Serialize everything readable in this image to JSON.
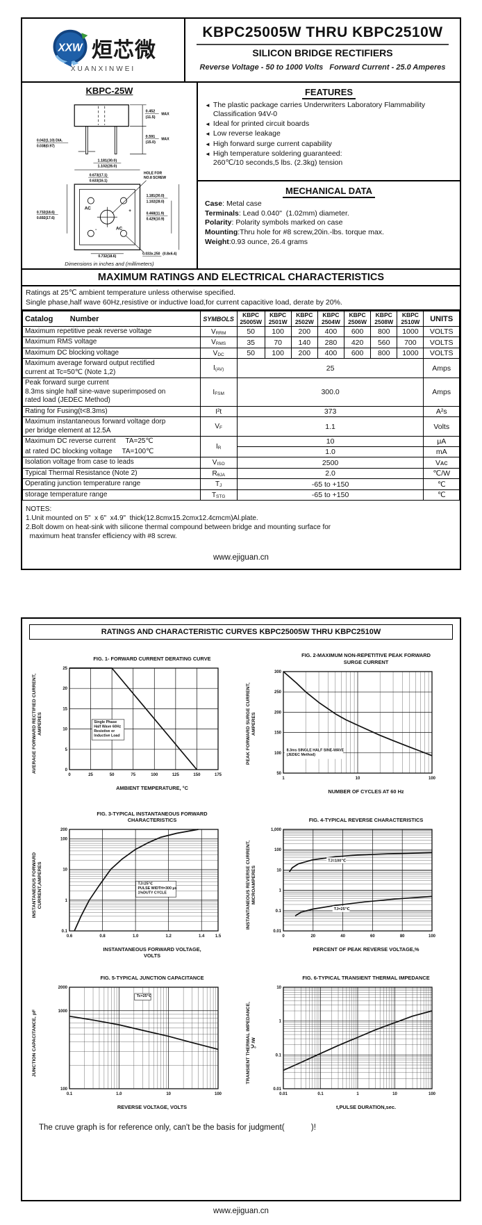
{
  "page1": {
    "logo": {
      "badge": "XXW",
      "cn": "烜芯微",
      "en": "XUANXINWEI"
    },
    "title": "KBPC25005W THRU KBPC2510W",
    "subtitle": "SILICON BRIDGE RECTIFIERS",
    "tagline": "Reverse Voltage - 50 to 1000 Volts   Forward Current -  25.0 Amperes",
    "package": {
      "name": "KBPC-25W",
      "caption": "Dimensions in inches and (millimeters)",
      "labels": {
        "h_in": "0.452",
        "h_mm": "(11.5)",
        "h_max": "MAX",
        "l_in": "0.591",
        "l_mm": "(15.0)",
        "l_max": "MAX",
        "d_in": "0.042(1.10) DIA.",
        "d_mm": "0.038(0.97)",
        "tw_in": "1.181(30.0)",
        "tw_mm": "1.102(28.0)",
        "hs_in": "0.673(17.1)",
        "hs_mm": "0.633(16.1)",
        "hole1": "HOLE FOR",
        "hole2": "NO.8 SCREW",
        "rh_in": "1.181(30.0)",
        "rh_mm": "1.102(28.0)",
        "rc_in": "0.468(11.9)",
        "rc_mm": "0.429(10.9)",
        "lw_in": "0.732(18.6)",
        "lw_mm": "0.692(17.6)",
        "bw_in": "0.732(18.6)",
        "bw_mm": "0.692(17.6)",
        "tab_in": "0.033x.250",
        "tab_mm": "(0.8x6.4)",
        "ac1": "AC",
        "plus": "+",
        "minus": "-",
        "ac2": "AC"
      }
    },
    "features": {
      "title": "FEATURES",
      "bullet": "◄",
      "items": [
        "The plastic package carries Underwriters Laboratory Flammability Classification 94V-0",
        "Ideal for printed circuit boards",
        "Low reverse leakage",
        "High forward surge current capability",
        "High temperature soldering guaranteed:\n260℃/10 seconds,5 lbs. (2.3kg) tension"
      ]
    },
    "mechanical": {
      "title": "MECHANICAL DATA",
      "rows": [
        {
          "b": "Case",
          "t": ": Metal case"
        },
        {
          "b": "Terminals",
          "t": ": Lead 0.040\"  (1.02mm) diameter."
        },
        {
          "b": "Polarity",
          "t": ": Polarity symbols marked on case"
        },
        {
          "b": "Mounting",
          "t": ":Thru hole for #8 screw,20in.-lbs. torque max."
        },
        {
          "b": "Weight",
          "t": ":0.93 ounce, 26.4 grams"
        }
      ]
    },
    "ratings": {
      "banner": "MAXIMUM RATINGS AND ELECTRICAL CHARACTERISTICS",
      "conditions": [
        "Ratings at 25℃ ambient temperature unless otherwise specified.",
        "Single phase,half wave 60Hz,resistive or inductive load,for current capacitive load, derate by 20%."
      ],
      "header": {
        "catalog": "Catalog        Number",
        "symbols": "SYMBOLS",
        "units": "UNITS",
        "parts": [
          "KBPC\n25005W",
          "KBPC\n2501W",
          "KBPC\n2502W",
          "KBPC\n2504W",
          "KBPC\n2506W",
          "KBPC\n2508W",
          "KBPC\n2510W"
        ]
      },
      "rows": [
        {
          "kind": "multi",
          "label": "Maximum repetitive peak reverse voltage",
          "sym": "V",
          "sub": "RRM",
          "values": [
            "50",
            "100",
            "200",
            "400",
            "600",
            "800",
            "1000"
          ],
          "units": "VOLTS"
        },
        {
          "kind": "multi",
          "label": "Maximum RMS voltage",
          "sym": "V",
          "sub": "RMS",
          "values": [
            "35",
            "70",
            "140",
            "280",
            "420",
            "560",
            "700"
          ],
          "units": "VOLTS"
        },
        {
          "kind": "multi",
          "label": "Maximum DC blocking voltage",
          "sym": "V",
          "sub": "DC",
          "values": [
            "50",
            "100",
            "200",
            "400",
            "600",
            "800",
            "1000"
          ],
          "units": "VOLTS"
        },
        {
          "kind": "span",
          "label": "Maximum average forward output rectified\ncurrent at  Tc=50℃  (Note 1,2)",
          "sym": "I",
          "sub": "(AV)",
          "value": "25",
          "units": "Amps"
        },
        {
          "kind": "span",
          "label": "Peak forward surge current\n8.3ms single half sine-wave superimposed on\nrated load (JEDEC Method)",
          "sym": "I",
          "sub": "FSM",
          "value": "300.0",
          "units": "Amps"
        },
        {
          "kind": "span",
          "label": "Rating for Fusing(t<8.3ms)",
          "sym": "I²t",
          "sub": "",
          "value": "373",
          "units": "A²s"
        },
        {
          "kind": "span",
          "label": "Maximum instantaneous forward voltage dorp\nper bridge element at 12.5A",
          "sym": "V",
          "sub": "F",
          "value": "1.1",
          "units": "Volts"
        },
        {
          "kind": "dual",
          "label1": "Maximum DC reverse current     TA=25℃",
          "label2": "at rated DC blocking voltage     TA=100℃",
          "sym": "I",
          "sub": "R",
          "value1": "10",
          "units1": "μA",
          "value2": "1.0",
          "units2": "mA"
        },
        {
          "kind": "span",
          "label": "Isolation voltage from case to leads",
          "sym": "V",
          "sub": "ISO",
          "value": "2500",
          "units": "Vᴀᴄ"
        },
        {
          "kind": "span",
          "label": "Typical Thermal Resistance (Note 2)",
          "sym": "R",
          "sub": "θJA",
          "value": "2.0",
          "units": "℃/W"
        },
        {
          "kind": "span",
          "label": "Operating junction temperature range",
          "sym": "T",
          "sub": "J",
          "value": "-65 to +150",
          "units": "℃"
        },
        {
          "kind": "span",
          "label": "storage temperature range",
          "sym": "T",
          "sub": "STG",
          "value": "-65 to +150",
          "units": "℃"
        }
      ]
    },
    "notes": {
      "title": "NOTES:",
      "lines": [
        "1.Unit mounted on 5\"  x 6\"  x4.9\"  thick(12.8cmx15.2cmx12.4cmcm)Al.plate.",
        "2.Bolt dowm on heat-sink with silicone thermal compound between bridge and mounting surface for",
        "  maximum heat transfer efficiency with #8 screw."
      ]
    },
    "footer": "www.ejiguan.cn"
  },
  "page2": {
    "banner": "RATINGS AND CHARACTERISTIC CURVES KBPC25005W THRU KBPC2510W",
    "disclaimer": "The cruve graph is for reference only, can't be the basis for judgment(            )!",
    "footer": "www.ejiguan.cn"
  },
  "chart_data": [
    {
      "type": "line",
      "title": "FIG. 1- FORWARD CURRENT DERATING CURVE",
      "xlabel": "AMBIENT TEMPERATURE, °C",
      "ylabel": "AVERAGE FORWARD RECTIFIED CURRENT,\nAMPERES",
      "xscale": "linear",
      "yscale": "linear",
      "xlim": [
        0,
        175
      ],
      "ylim": [
        0,
        25
      ],
      "xticks": [
        [
          0,
          "0"
        ],
        [
          25,
          "25"
        ],
        [
          50,
          "50"
        ],
        [
          75,
          "75"
        ],
        [
          100,
          "100"
        ],
        [
          125,
          "125"
        ],
        [
          150,
          "150"
        ],
        [
          175,
          "175"
        ]
      ],
      "yticks": [
        [
          0,
          "0"
        ],
        [
          5,
          "5"
        ],
        [
          10,
          "10"
        ],
        [
          15,
          "15"
        ],
        [
          20,
          "20"
        ],
        [
          25,
          "25"
        ]
      ],
      "series": [
        {
          "name": "derating",
          "x": [
            0,
            50,
            150
          ],
          "y": [
            25,
            25,
            0
          ]
        }
      ],
      "ann": [
        {
          "text": "Single Phase\nHalf Wave 60Hz\nResistive or\nInductive Load",
          "x": 28,
          "y": 11.5,
          "boxed": true
        }
      ]
    },
    {
      "type": "line",
      "title": "FIG. 2-MAXIMUM NON-REPETITIVE PEAK FORWARD\nSURGE CURRENT",
      "xlabel": "NUMBER OF CYCLES AT 60 Hz",
      "ylabel": "PEAK  FORWARD SURGE CURRENT,\nAMPERES",
      "xscale": "log",
      "yscale": "linear",
      "xlim": [
        1,
        100
      ],
      "ylim": [
        50,
        300
      ],
      "xticks": [
        [
          1,
          "1"
        ],
        [
          10,
          "10"
        ],
        [
          100,
          "100"
        ]
      ],
      "yticks": [
        [
          50,
          "50"
        ],
        [
          100,
          "100"
        ],
        [
          150,
          "150"
        ],
        [
          200,
          "200"
        ],
        [
          250,
          "250"
        ],
        [
          300,
          "300"
        ]
      ],
      "series": [
        {
          "name": "surge",
          "x": [
            1,
            1.5,
            2,
            3,
            5,
            7,
            10,
            20,
            30,
            50,
            70,
            100
          ],
          "y": [
            300,
            272,
            250,
            224,
            196,
            181,
            168,
            143,
            130,
            114,
            104,
            93
          ]
        }
      ],
      "ann": [
        {
          "text": "8.3ms SINGLE HALF SINE-WAVE\n(JEDEC Method)",
          "x": 1.08,
          "y": 104,
          "boxed": false
        }
      ]
    },
    {
      "type": "line",
      "title": "FIG. 3-TYPICAL INSTANTANEOUS FORWARD\nCHARACTERISTICS",
      "xlabel": "INSTANTANEOUS FORWARD VOLTAGE,\nVOLTS",
      "ylabel": "INSTANTANEOUS FORWARD\nCURRENT,AMPERES",
      "xscale": "linear",
      "yscale": "log",
      "xlim": [
        0.6,
        1.5
      ],
      "ylim": [
        0.1,
        200
      ],
      "xticks": [
        [
          0.6,
          "0.6"
        ],
        [
          0.8,
          "0.8"
        ],
        [
          1.0,
          "1.0"
        ],
        [
          1.2,
          "1.2"
        ],
        [
          1.4,
          "1.4"
        ],
        [
          1.5,
          "1.5"
        ]
      ],
      "yticks": [
        [
          0.1,
          "0.1"
        ],
        [
          1,
          "1"
        ],
        [
          10,
          "10"
        ],
        [
          100,
          "100"
        ],
        [
          200,
          "200"
        ]
      ],
      "series": [
        {
          "name": "forward",
          "x": [
            0.63,
            0.67,
            0.72,
            0.78,
            0.85,
            0.92,
            1.0,
            1.08,
            1.15,
            1.25,
            1.38
          ],
          "y": [
            0.1,
            0.3,
            1,
            3,
            10,
            22,
            45,
            75,
            110,
            150,
            200
          ]
        }
      ],
      "ann": [
        {
          "text": "TJ=25℃\nPULSE WIDTH=300 μs\n1%DUTY CYCLE",
          "x": 1.01,
          "y": 3.2,
          "boxed": true
        }
      ]
    },
    {
      "type": "line",
      "title": "FIG. 4-TYPICAL REVERSE CHARACTERISTICS",
      "xlabel": "PERCENT OF PEAK REVERSE VOLTAGE,%",
      "ylabel": "INSTANTANEOUS REVERSE CURRENT,\nMICROAMPERES",
      "xscale": "linear",
      "yscale": "log",
      "xlim": [
        0,
        100
      ],
      "ylim": [
        0.01,
        1000
      ],
      "xticks": [
        [
          0,
          "0"
        ],
        [
          20,
          "20"
        ],
        [
          40,
          "40"
        ],
        [
          60,
          "60"
        ],
        [
          80,
          "80"
        ],
        [
          100,
          "100"
        ]
      ],
      "yticks": [
        [
          0.01,
          "0.01"
        ],
        [
          0.1,
          "0.1"
        ],
        [
          1,
          "1"
        ],
        [
          10,
          "10"
        ],
        [
          100,
          "100"
        ],
        [
          1000,
          "1,000"
        ]
      ],
      "series": [
        {
          "name": "TJ=100℃",
          "x": [
            4,
            6,
            10,
            20,
            35,
            50,
            70,
            100
          ],
          "y": [
            8,
            13,
            20,
            32,
            45,
            55,
            63,
            72
          ],
          "label_at": [
            30,
            26
          ]
        },
        {
          "name": "TJ=25℃",
          "x": [
            8,
            12,
            20,
            35,
            55,
            75,
            100
          ],
          "y": [
            0.055,
            0.085,
            0.12,
            0.18,
            0.27,
            0.37,
            0.5
          ],
          "label_at": [
            34,
            0.105
          ]
        }
      ],
      "ann": []
    },
    {
      "type": "line",
      "title": "FIG. 5-TYPICAL JUNCTION CAPACITANCE",
      "xlabel": "REVERSE VOLTAGE, VOLTS",
      "ylabel": "JUNCTION CAPACITANCE, pF",
      "xscale": "log",
      "yscale": "log",
      "xlim": [
        0.1,
        100
      ],
      "ylim": [
        100,
        2000
      ],
      "xticks": [
        [
          0.1,
          "0.1"
        ],
        [
          1,
          "1.0"
        ],
        [
          10,
          "10"
        ],
        [
          100,
          "100"
        ]
      ],
      "yticks": [
        [
          100,
          "100"
        ],
        [
          1000,
          "1000"
        ],
        [
          2000,
          "2000"
        ]
      ],
      "series": [
        {
          "name": "capacitance",
          "x": [
            0.1,
            0.3,
            1,
            3,
            10,
            30,
            100
          ],
          "y": [
            850,
            760,
            660,
            560,
            470,
            390,
            320
          ]
        }
      ],
      "ann": [
        {
          "text": "Tc=25℃",
          "x": 2.2,
          "y": 1500,
          "boxed": true
        }
      ]
    },
    {
      "type": "line",
      "title": "FIG. 6-TYPICAL TRANSIENT THERMAL IMPEDANCE",
      "xlabel": "t,PULSE DURATION,sec.",
      "ylabel": "TRANSIENT THERMAL IMPEDANCE,\n℃/W",
      "xscale": "log",
      "yscale": "log",
      "xlim": [
        0.01,
        100
      ],
      "ylim": [
        0.01,
        10
      ],
      "xticks": [
        [
          0.01,
          "0.01"
        ],
        [
          0.1,
          "0.1"
        ],
        [
          1,
          "1"
        ],
        [
          10,
          "10"
        ],
        [
          100,
          "100"
        ]
      ],
      "yticks": [
        [
          0.01,
          "0.01"
        ],
        [
          0.1,
          "0.1"
        ],
        [
          1,
          "1"
        ],
        [
          10,
          "10"
        ]
      ],
      "series": [
        {
          "name": "thermal",
          "x": [
            0.01,
            0.03,
            0.1,
            0.3,
            1,
            3,
            10,
            30,
            100
          ],
          "y": [
            0.035,
            0.06,
            0.11,
            0.19,
            0.33,
            0.55,
            0.9,
            1.4,
            2.0
          ]
        }
      ],
      "ann": []
    }
  ]
}
